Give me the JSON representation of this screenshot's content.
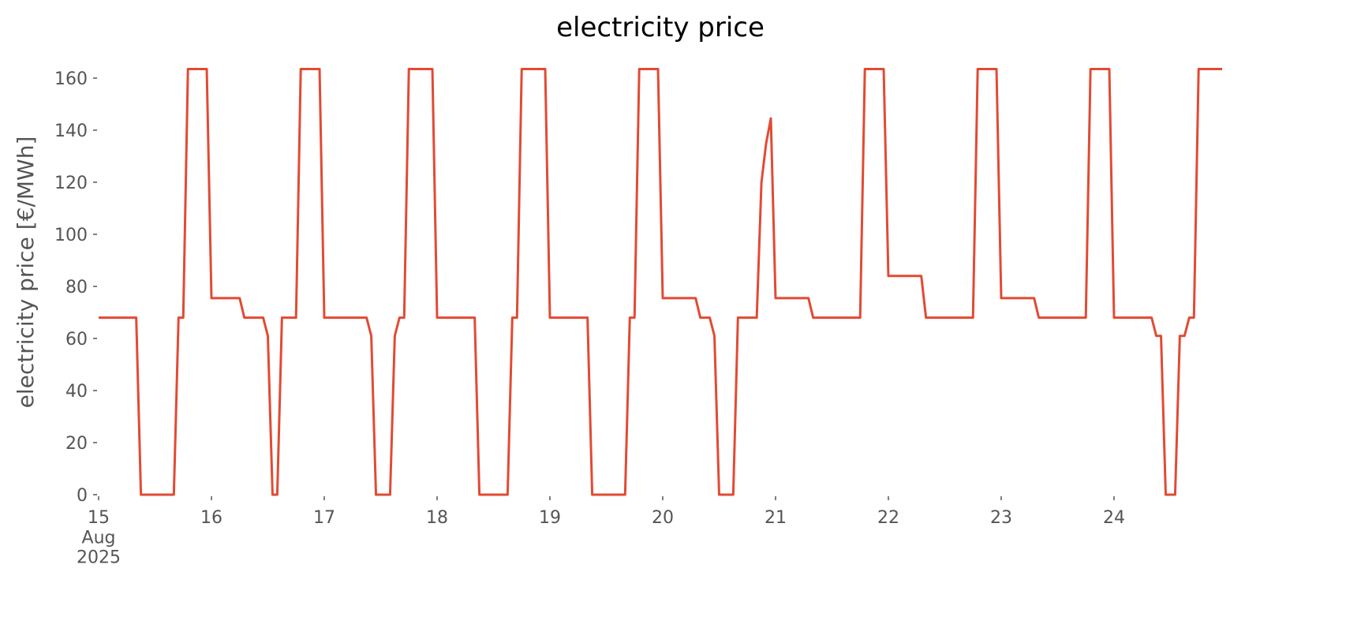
{
  "chart_data": {
    "type": "line",
    "title": "electricity price",
    "ylabel": "electricity price [€/MWh]",
    "x": [
      "2025-08-15T00:00",
      "2025-08-15T01:00",
      "2025-08-15T02:00",
      "2025-08-15T03:00",
      "2025-08-15T04:00",
      "2025-08-15T05:00",
      "2025-08-15T06:00",
      "2025-08-15T07:00",
      "2025-08-15T08:00",
      "2025-08-15T09:00",
      "2025-08-15T10:00",
      "2025-08-15T11:00",
      "2025-08-15T12:00",
      "2025-08-15T13:00",
      "2025-08-15T14:00",
      "2025-08-15T15:00",
      "2025-08-15T16:00",
      "2025-08-15T17:00",
      "2025-08-15T18:00",
      "2025-08-15T19:00",
      "2025-08-15T20:00",
      "2025-08-15T21:00",
      "2025-08-15T22:00",
      "2025-08-15T23:00",
      "2025-08-16T00:00",
      "2025-08-16T01:00",
      "2025-08-16T02:00",
      "2025-08-16T03:00",
      "2025-08-16T04:00",
      "2025-08-16T05:00",
      "2025-08-16T06:00",
      "2025-08-16T07:00",
      "2025-08-16T08:00",
      "2025-08-16T09:00",
      "2025-08-16T10:00",
      "2025-08-16T11:00",
      "2025-08-16T12:00",
      "2025-08-16T13:00",
      "2025-08-16T14:00",
      "2025-08-16T15:00",
      "2025-08-16T16:00",
      "2025-08-16T17:00",
      "2025-08-16T18:00",
      "2025-08-16T19:00",
      "2025-08-16T20:00",
      "2025-08-16T21:00",
      "2025-08-16T22:00",
      "2025-08-16T23:00",
      "2025-08-17T00:00",
      "2025-08-17T01:00",
      "2025-08-17T02:00",
      "2025-08-17T03:00",
      "2025-08-17T04:00",
      "2025-08-17T05:00",
      "2025-08-17T06:00",
      "2025-08-17T07:00",
      "2025-08-17T08:00",
      "2025-08-17T09:00",
      "2025-08-17T10:00",
      "2025-08-17T11:00",
      "2025-08-17T12:00",
      "2025-08-17T13:00",
      "2025-08-17T14:00",
      "2025-08-17T15:00",
      "2025-08-17T16:00",
      "2025-08-17T17:00",
      "2025-08-17T18:00",
      "2025-08-17T19:00",
      "2025-08-17T20:00",
      "2025-08-17T21:00",
      "2025-08-17T22:00",
      "2025-08-17T23:00",
      "2025-08-18T00:00",
      "2025-08-18T01:00",
      "2025-08-18T02:00",
      "2025-08-18T03:00",
      "2025-08-18T04:00",
      "2025-08-18T05:00",
      "2025-08-18T06:00",
      "2025-08-18T07:00",
      "2025-08-18T08:00",
      "2025-08-18T09:00",
      "2025-08-18T10:00",
      "2025-08-18T11:00",
      "2025-08-18T12:00",
      "2025-08-18T13:00",
      "2025-08-18T14:00",
      "2025-08-18T15:00",
      "2025-08-18T16:00",
      "2025-08-18T17:00",
      "2025-08-18T18:00",
      "2025-08-18T19:00",
      "2025-08-18T20:00",
      "2025-08-18T21:00",
      "2025-08-18T22:00",
      "2025-08-18T23:00",
      "2025-08-19T00:00",
      "2025-08-19T01:00",
      "2025-08-19T02:00",
      "2025-08-19T03:00",
      "2025-08-19T04:00",
      "2025-08-19T05:00",
      "2025-08-19T06:00",
      "2025-08-19T07:00",
      "2025-08-19T08:00",
      "2025-08-19T09:00",
      "2025-08-19T10:00",
      "2025-08-19T11:00",
      "2025-08-19T12:00",
      "2025-08-19T13:00",
      "2025-08-19T14:00",
      "2025-08-19T15:00",
      "2025-08-19T16:00",
      "2025-08-19T17:00",
      "2025-08-19T18:00",
      "2025-08-19T19:00",
      "2025-08-19T20:00",
      "2025-08-19T21:00",
      "2025-08-19T22:00",
      "2025-08-19T23:00",
      "2025-08-20T00:00",
      "2025-08-20T01:00",
      "2025-08-20T02:00",
      "2025-08-20T03:00",
      "2025-08-20T04:00",
      "2025-08-20T05:00",
      "2025-08-20T06:00",
      "2025-08-20T07:00",
      "2025-08-20T08:00",
      "2025-08-20T09:00",
      "2025-08-20T10:00",
      "2025-08-20T11:00",
      "2025-08-20T12:00",
      "2025-08-20T13:00",
      "2025-08-20T14:00",
      "2025-08-20T15:00",
      "2025-08-20T16:00",
      "2025-08-20T17:00",
      "2025-08-20T18:00",
      "2025-08-20T19:00",
      "2025-08-20T20:00",
      "2025-08-20T21:00",
      "2025-08-20T22:00",
      "2025-08-20T23:00",
      "2025-08-21T00:00",
      "2025-08-21T01:00",
      "2025-08-21T02:00",
      "2025-08-21T03:00",
      "2025-08-21T04:00",
      "2025-08-21T05:00",
      "2025-08-21T06:00",
      "2025-08-21T07:00",
      "2025-08-21T08:00",
      "2025-08-21T09:00",
      "2025-08-21T10:00",
      "2025-08-21T11:00",
      "2025-08-21T12:00",
      "2025-08-21T13:00",
      "2025-08-21T14:00",
      "2025-08-21T15:00",
      "2025-08-21T16:00",
      "2025-08-21T17:00",
      "2025-08-21T18:00",
      "2025-08-21T19:00",
      "2025-08-21T20:00",
      "2025-08-21T21:00",
      "2025-08-21T22:00",
      "2025-08-21T23:00",
      "2025-08-22T00:00",
      "2025-08-22T01:00",
      "2025-08-22T02:00",
      "2025-08-22T03:00",
      "2025-08-22T04:00",
      "2025-08-22T05:00",
      "2025-08-22T06:00",
      "2025-08-22T07:00",
      "2025-08-22T08:00",
      "2025-08-22T09:00",
      "2025-08-22T10:00",
      "2025-08-22T11:00",
      "2025-08-22T12:00",
      "2025-08-22T13:00",
      "2025-08-22T14:00",
      "2025-08-22T15:00",
      "2025-08-22T16:00",
      "2025-08-22T17:00",
      "2025-08-22T18:00",
      "2025-08-22T19:00",
      "2025-08-22T20:00",
      "2025-08-22T21:00",
      "2025-08-22T22:00",
      "2025-08-22T23:00",
      "2025-08-23T00:00",
      "2025-08-23T01:00",
      "2025-08-23T02:00",
      "2025-08-23T03:00",
      "2025-08-23T04:00",
      "2025-08-23T05:00",
      "2025-08-23T06:00",
      "2025-08-23T07:00",
      "2025-08-23T08:00",
      "2025-08-23T09:00",
      "2025-08-23T10:00",
      "2025-08-23T11:00",
      "2025-08-23T12:00",
      "2025-08-23T13:00",
      "2025-08-23T14:00",
      "2025-08-23T15:00",
      "2025-08-23T16:00",
      "2025-08-23T17:00",
      "2025-08-23T18:00",
      "2025-08-23T19:00",
      "2025-08-23T20:00",
      "2025-08-23T21:00",
      "2025-08-23T22:00",
      "2025-08-23T23:00",
      "2025-08-24T00:00",
      "2025-08-24T01:00",
      "2025-08-24T02:00",
      "2025-08-24T03:00",
      "2025-08-24T04:00",
      "2025-08-24T05:00",
      "2025-08-24T06:00",
      "2025-08-24T07:00",
      "2025-08-24T08:00",
      "2025-08-24T09:00",
      "2025-08-24T10:00",
      "2025-08-24T11:00",
      "2025-08-24T12:00",
      "2025-08-24T13:00",
      "2025-08-24T14:00",
      "2025-08-24T15:00",
      "2025-08-24T16:00",
      "2025-08-24T17:00",
      "2025-08-24T18:00",
      "2025-08-24T19:00",
      "2025-08-24T20:00",
      "2025-08-24T21:00",
      "2025-08-24T22:00",
      "2025-08-24T23:00"
    ],
    "series": [
      {
        "color": "#e24a33",
        "values": [
          68,
          68,
          68,
          68,
          68,
          68,
          68,
          68,
          68,
          0,
          0,
          0,
          0,
          0,
          0,
          0,
          0,
          68,
          68,
          163.5,
          163.5,
          163.5,
          163.5,
          163.5,
          75.5,
          75.5,
          75.5,
          75.5,
          75.5,
          75.5,
          75.5,
          68,
          68,
          68,
          68,
          68,
          61,
          0,
          0,
          68,
          68,
          68,
          68,
          163.5,
          163.5,
          163.5,
          163.5,
          163.5,
          68,
          68,
          68,
          68,
          68,
          68,
          68,
          68,
          68,
          68,
          61,
          0,
          0,
          0,
          0,
          61,
          68,
          68,
          163.5,
          163.5,
          163.5,
          163.5,
          163.5,
          163.5,
          68,
          68,
          68,
          68,
          68,
          68,
          68,
          68,
          68,
          0,
          0,
          0,
          0,
          0,
          0,
          0,
          68,
          68,
          163.5,
          163.5,
          163.5,
          163.5,
          163.5,
          163.5,
          68,
          68,
          68,
          68,
          68,
          68,
          68,
          68,
          68,
          0,
          0,
          0,
          0,
          0,
          0,
          0,
          0,
          68,
          68,
          163.5,
          163.5,
          163.5,
          163.5,
          163.5,
          75.5,
          75.5,
          75.5,
          75.5,
          75.5,
          75.5,
          75.5,
          75.5,
          68,
          68,
          68,
          61,
          0,
          0,
          0,
          0,
          68,
          68,
          68,
          68,
          68,
          120,
          135,
          144.5,
          75.5,
          75.5,
          75.5,
          75.5,
          75.5,
          75.5,
          75.5,
          75.5,
          68,
          68,
          68,
          68,
          68,
          68,
          68,
          68,
          68,
          68,
          68,
          163.5,
          163.5,
          163.5,
          163.5,
          163.5,
          84,
          84,
          84,
          84,
          84,
          84,
          84,
          84,
          68,
          68,
          68,
          68,
          68,
          68,
          68,
          68,
          68,
          68,
          68,
          163.5,
          163.5,
          163.5,
          163.5,
          163.5,
          75.5,
          75.5,
          75.5,
          75.5,
          75.5,
          75.5,
          75.5,
          75.5,
          68,
          68,
          68,
          68,
          68,
          68,
          68,
          68,
          68,
          68,
          68,
          163.5,
          163.5,
          163.5,
          163.5,
          163.5,
          68,
          68,
          68,
          68,
          68,
          68,
          68,
          68,
          68,
          61,
          61,
          0,
          0,
          0,
          61,
          61,
          68,
          68,
          163.5,
          163.5,
          163.5,
          163.5,
          163.5,
          163.5
        ]
      }
    ],
    "xlim": [
      "2025-08-15T00:00",
      "2025-08-24T23:00"
    ],
    "xticks": [
      {
        "value": "2025-08-15T00:00",
        "label": "15\nAug\n2025"
      },
      {
        "value": "2025-08-16T00:00",
        "label": "16"
      },
      {
        "value": "2025-08-17T00:00",
        "label": "17"
      },
      {
        "value": "2025-08-18T00:00",
        "label": "18"
      },
      {
        "value": "2025-08-19T00:00",
        "label": "19"
      },
      {
        "value": "2025-08-20T00:00",
        "label": "20"
      },
      {
        "value": "2025-08-21T00:00",
        "label": "21"
      },
      {
        "value": "2025-08-22T00:00",
        "label": "22"
      },
      {
        "value": "2025-08-23T00:00",
        "label": "23"
      },
      {
        "value": "2025-08-24T00:00",
        "label": "24"
      }
    ],
    "ylim": [
      0,
      170
    ],
    "yticks": [
      0,
      20,
      40,
      60,
      80,
      100,
      120,
      140,
      160
    ],
    "grid": false
  }
}
